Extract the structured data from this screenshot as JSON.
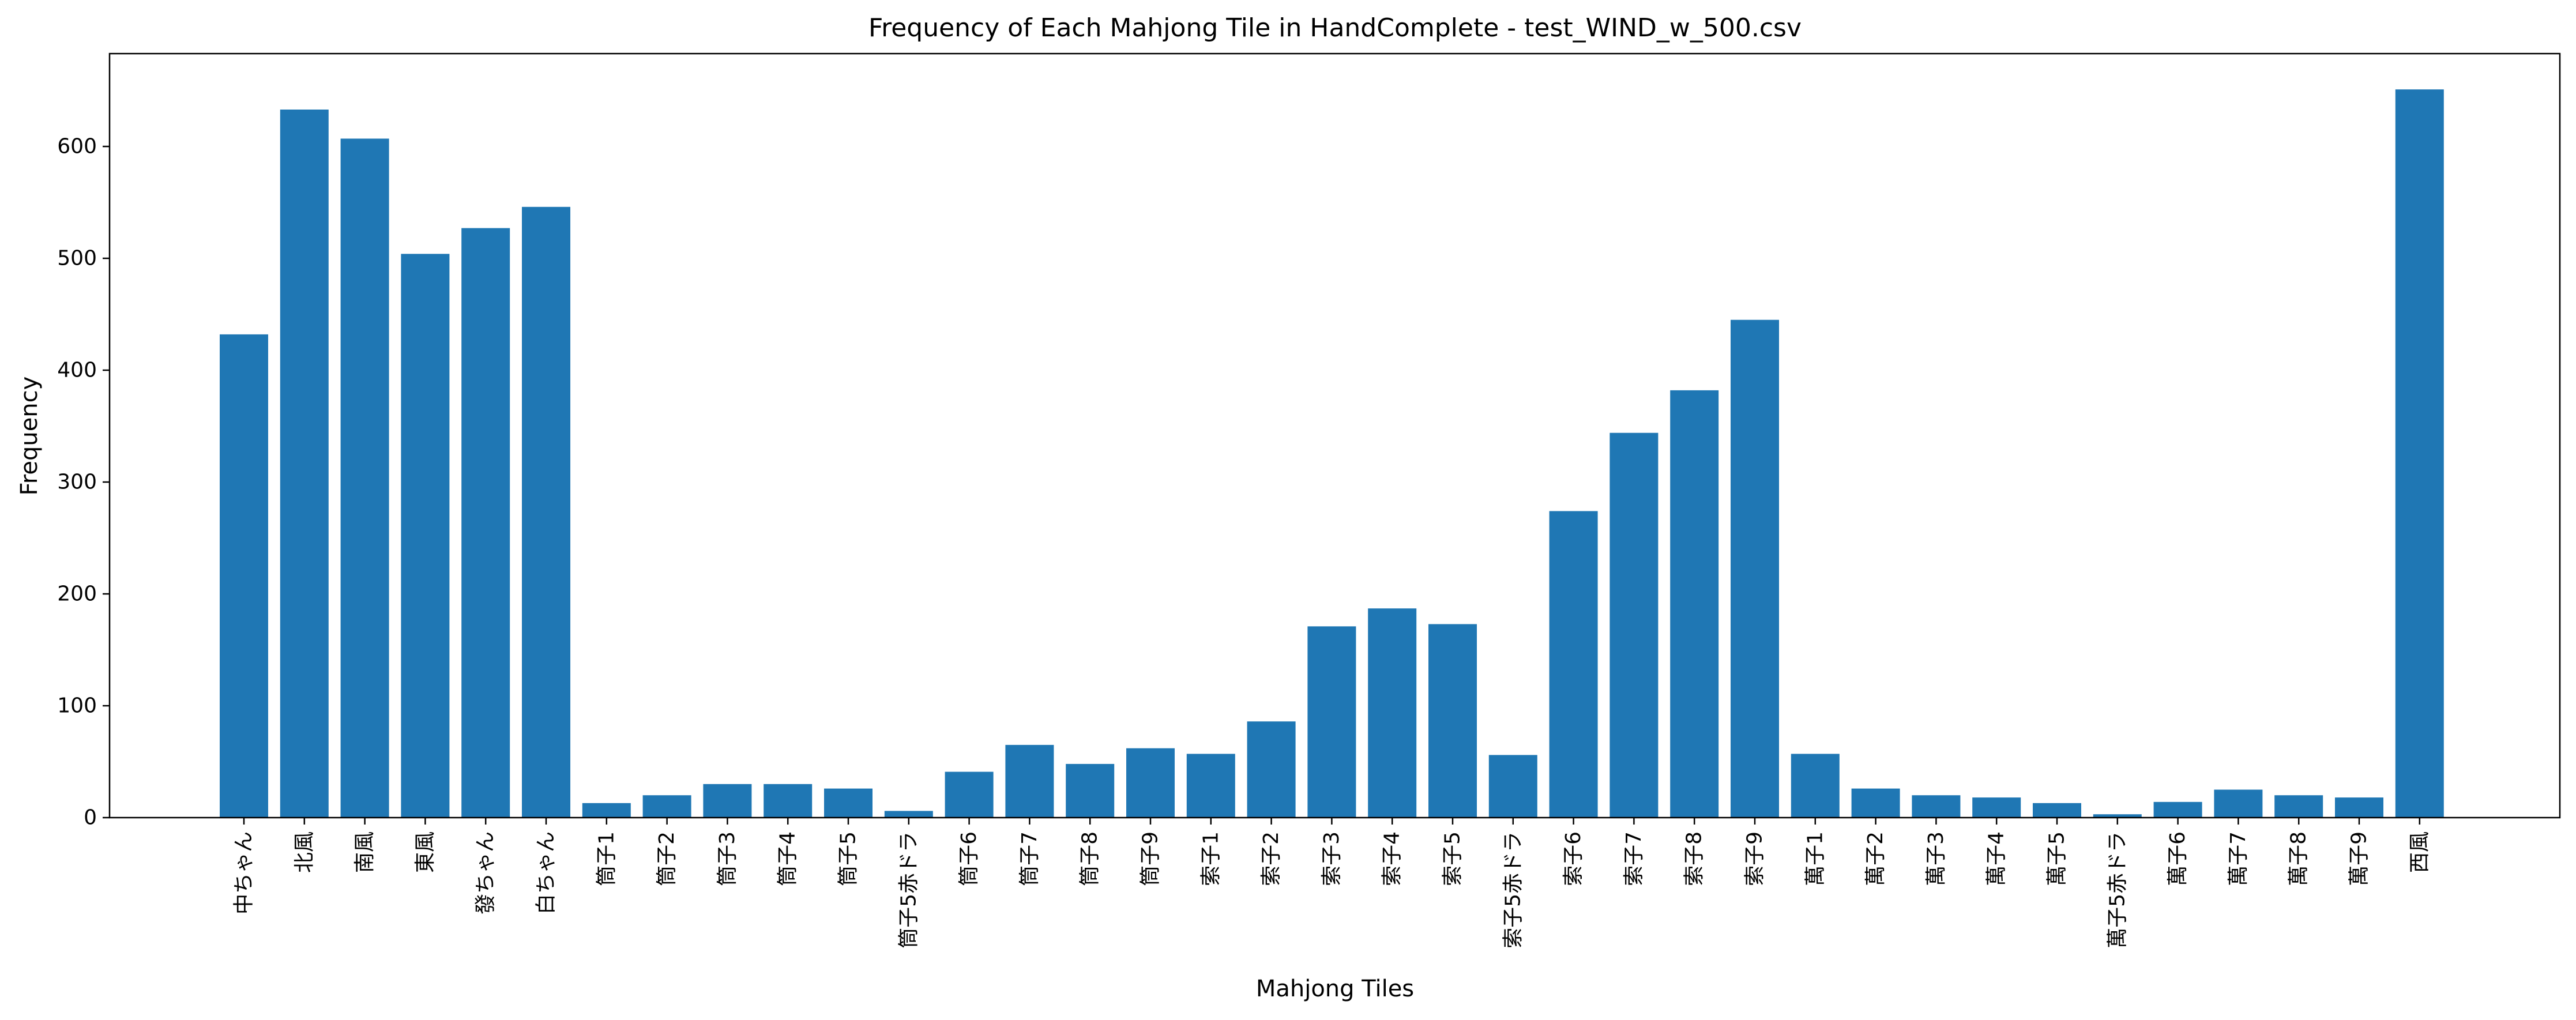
{
  "chart_data": {
    "type": "bar",
    "title": "Frequency of Each Mahjong Tile in HandComplete - test_WIND_w_500.csv",
    "xlabel": "Mahjong Tiles",
    "ylabel": "Frequency",
    "ylim": [
      0,
      683
    ],
    "yticks": [
      0,
      100,
      200,
      300,
      400,
      500,
      600
    ],
    "grid": false,
    "bar_color": "#1f77b4",
    "categories": [
      "中ちゃん",
      "北風",
      "南風",
      "東風",
      "發ちゃん",
      "白ちゃん",
      "筒子1",
      "筒子2",
      "筒子3",
      "筒子4",
      "筒子5",
      "筒子5赤ドラ",
      "筒子6",
      "筒子7",
      "筒子8",
      "筒子9",
      "索子1",
      "索子2",
      "索子3",
      "索子4",
      "索子5",
      "索子5赤ドラ",
      "索子6",
      "索子7",
      "索子8",
      "索子9",
      "萬子1",
      "萬子2",
      "萬子3",
      "萬子4",
      "萬子5",
      "萬子5赤ドラ",
      "萬子6",
      "萬子7",
      "萬子8",
      "萬子9",
      "西風"
    ],
    "values": [
      432,
      633,
      607,
      504,
      527,
      546,
      13,
      20,
      30,
      30,
      26,
      6,
      41,
      65,
      48,
      62,
      57,
      86,
      171,
      187,
      173,
      56,
      274,
      344,
      382,
      445,
      57,
      26,
      20,
      18,
      13,
      3,
      14,
      25,
      20,
      18,
      651
    ]
  }
}
